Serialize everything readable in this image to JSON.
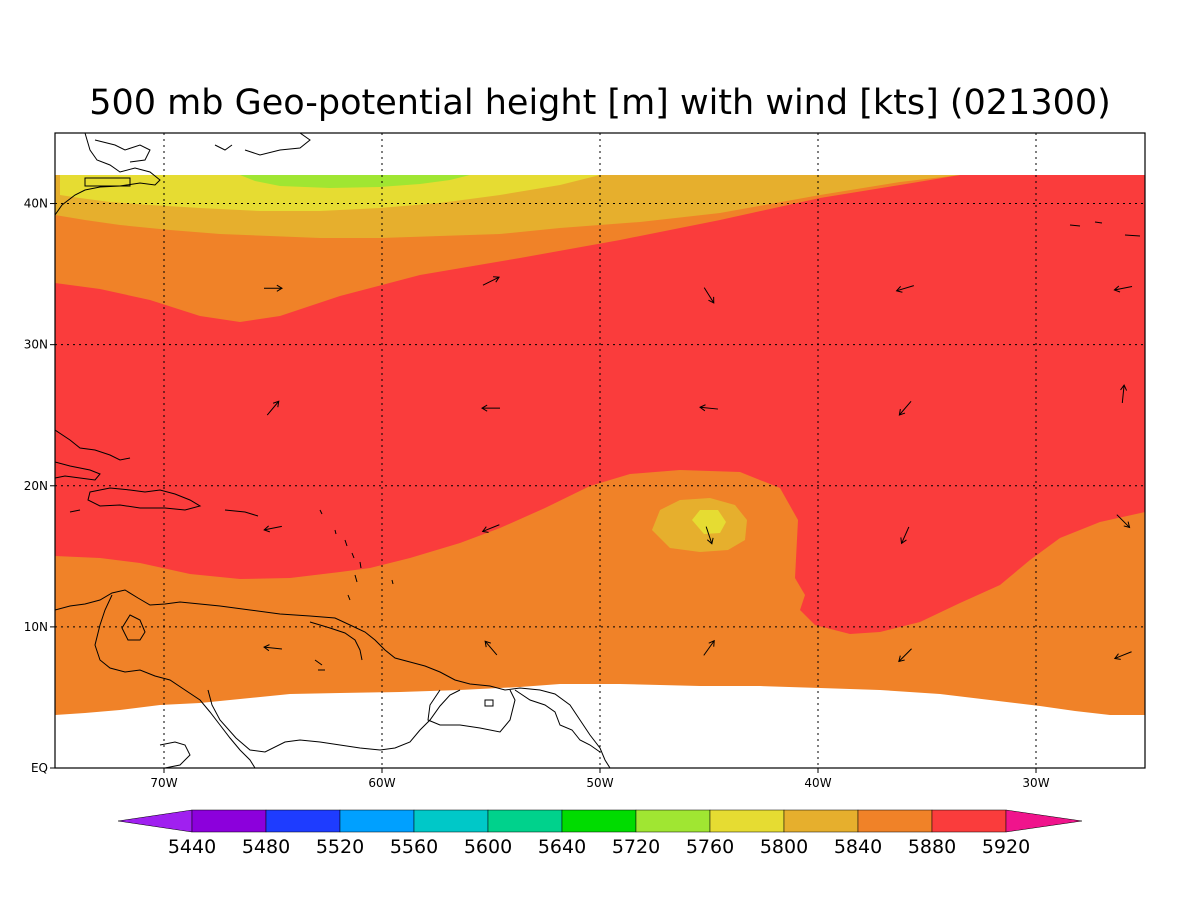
{
  "title": "500 mb Geo-potential height [m] with wind [kts] (021300)",
  "map": {
    "lon_range": [
      -75,
      -25
    ],
    "lat_range": [
      0,
      45
    ],
    "data_lat_max": 42,
    "x_ticks": [
      {
        "lon": -70,
        "label": "70W"
      },
      {
        "lon": -60,
        "label": "60W"
      },
      {
        "lon": -50,
        "label": "50W"
      },
      {
        "lon": -40,
        "label": "40W"
      },
      {
        "lon": -30,
        "label": "30W"
      }
    ],
    "y_ticks": [
      {
        "lat": 0,
        "label": "EQ"
      },
      {
        "lat": 10,
        "label": "10N"
      },
      {
        "lat": 20,
        "label": "20N"
      },
      {
        "lat": 30,
        "label": "30N"
      },
      {
        "lat": 40,
        "label": "40N"
      }
    ],
    "grid": true,
    "contour_fill_order": [
      "5880",
      "5920",
      "5840",
      "5800",
      "5760",
      "5720"
    ],
    "wind_vectors": [
      {
        "lon": -65,
        "lat": 34,
        "u": 1,
        "v": 0
      },
      {
        "lon": -55,
        "lat": 34.5,
        "u": 1,
        "v": 0.5
      },
      {
        "lon": -45,
        "lat": 33.5,
        "u": 0.5,
        "v": -0.8
      },
      {
        "lon": -36,
        "lat": 34,
        "u": -1,
        "v": -0.3
      },
      {
        "lon": -26,
        "lat": 34,
        "u": -1,
        "v": -0.2
      },
      {
        "lon": -65,
        "lat": 25.5,
        "u": 0.5,
        "v": 0.6
      },
      {
        "lon": -55,
        "lat": 25.5,
        "u": -1,
        "v": 0
      },
      {
        "lon": -45,
        "lat": 25.5,
        "u": -1,
        "v": 0.1
      },
      {
        "lon": -36,
        "lat": 25.5,
        "u": -0.6,
        "v": -0.7
      },
      {
        "lon": -26,
        "lat": 26.5,
        "u": 0.1,
        "v": 1
      },
      {
        "lon": -65,
        "lat": 17,
        "u": -1,
        "v": -0.2
      },
      {
        "lon": -55,
        "lat": 17,
        "u": -1,
        "v": -0.4
      },
      {
        "lon": -45,
        "lat": 16.5,
        "u": 0.3,
        "v": -0.9
      },
      {
        "lon": -36,
        "lat": 16.5,
        "u": -0.4,
        "v": -0.9
      },
      {
        "lon": -26,
        "lat": 17.5,
        "u": 0.7,
        "v": -0.7
      },
      {
        "lon": -65,
        "lat": 8.5,
        "u": -1,
        "v": 0.1
      },
      {
        "lon": -55,
        "lat": 8.5,
        "u": -0.6,
        "v": 0.7
      },
      {
        "lon": -45,
        "lat": 8.5,
        "u": 0.5,
        "v": 0.7
      },
      {
        "lon": -36,
        "lat": 8,
        "u": -0.7,
        "v": -0.7
      },
      {
        "lon": -26,
        "lat": 8,
        "u": -1,
        "v": -0.4
      }
    ]
  },
  "colorbar": {
    "low_color": "#a020f0",
    "high_color": "#f0148c",
    "bins": [
      {
        "label": "5440",
        "color": "#8c00dc"
      },
      {
        "label": "5480",
        "color": "#1e3cff"
      },
      {
        "label": "5520",
        "color": "#00a0ff"
      },
      {
        "label": "5560",
        "color": "#00c8c8"
      },
      {
        "label": "5600",
        "color": "#00d28c"
      },
      {
        "label": "5640",
        "color": "#00dc00"
      },
      {
        "label": "5720",
        "color": "#a0e632"
      },
      {
        "label": "5760",
        "color": "#e6dc32"
      },
      {
        "label": "5800",
        "color": "#e6af2d"
      },
      {
        "label": "5840",
        "color": "#f08228"
      },
      {
        "label": "5880",
        "color": "#fa3c3c"
      },
      {
        "label": "5920",
        "color": ""
      }
    ]
  }
}
